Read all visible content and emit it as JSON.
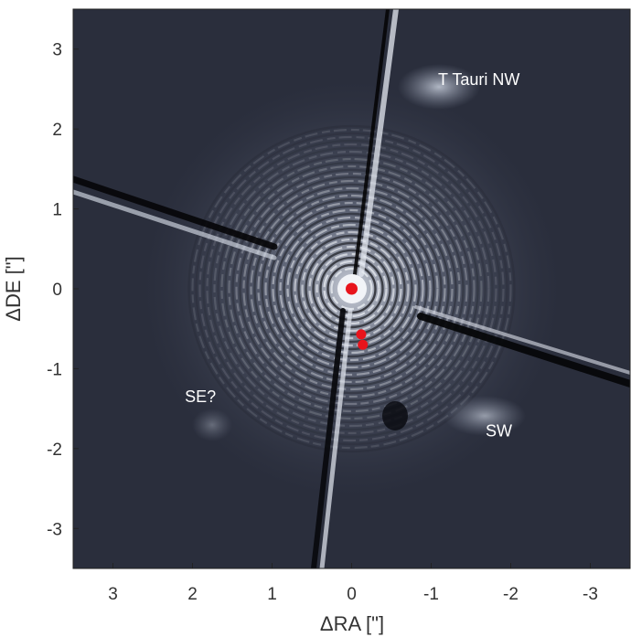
{
  "chart_data": {
    "type": "scatter",
    "xlabel": "ΔRA [\"]",
    "ylabel": "ΔDE [\"]",
    "xlim": [
      3.5,
      -3.5
    ],
    "ylim": [
      -3.5,
      3.5
    ],
    "x_ticks": [
      3,
      2,
      1,
      0,
      -1,
      -2,
      -3
    ],
    "x_tick_labels": [
      "3",
      "2",
      "1",
      "0",
      "-1",
      "-2",
      "-3"
    ],
    "y_ticks": [
      3,
      2,
      1,
      0,
      -1,
      -2,
      -3
    ],
    "y_tick_labels": [
      "3",
      "2",
      "1",
      "0",
      "-1",
      "-2",
      "-3"
    ],
    "grid": false,
    "points": [
      {
        "x": 0.0,
        "y": 0.0
      },
      {
        "x": -0.12,
        "y": -0.57
      },
      {
        "x": -0.14,
        "y": -0.7
      }
    ],
    "marker_color": "#e8141c",
    "background_colormap": [
      "#0a0a10",
      "#2c3040",
      "#5a6070",
      "#b4bcc8",
      "#ffffff"
    ],
    "annotations": [
      {
        "text": "T Tauri NW",
        "x": -1.6,
        "y": 2.55
      },
      {
        "text": "SE?",
        "x": 1.9,
        "y": -1.42
      },
      {
        "text": "SW",
        "x": -1.85,
        "y": -1.85
      }
    ]
  }
}
